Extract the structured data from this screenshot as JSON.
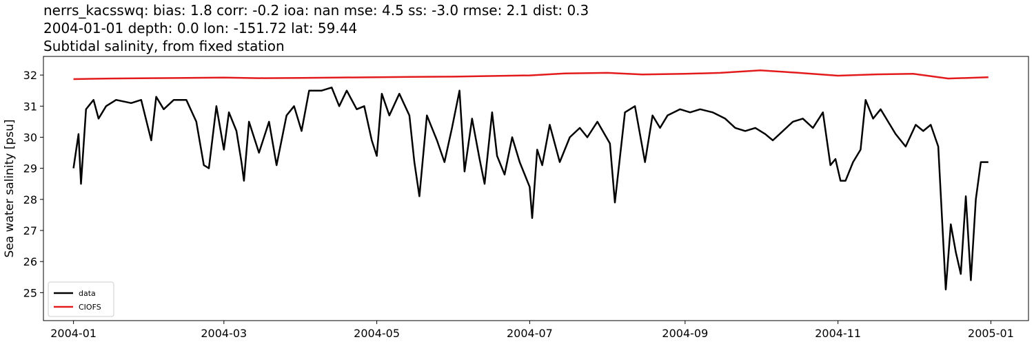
{
  "titles": {
    "line1": "nerrs_kacsswq: bias: 1.8  corr: -0.2  ioa: nan  mse: 4.5  ss: -3.0  rmse: 2.1  dist: 0.3",
    "line2": "2004-01-01 depth: 0.0 lon: -151.72 lat: 59.44",
    "line3": "Subtidal salinity, from fixed station"
  },
  "chart_data": {
    "type": "line",
    "title": "Subtidal salinity, from fixed station",
    "xlabel": "",
    "ylabel": "Sea water salinity [psu]",
    "xlim": [
      "2003-12-20",
      "2005-01-16"
    ],
    "ylim": [
      24.1,
      32.6
    ],
    "x_ticks": [
      "2004-01",
      "2004-03",
      "2004-05",
      "2004-07",
      "2004-09",
      "2004-11",
      "2005-01"
    ],
    "y_ticks": [
      25,
      26,
      27,
      28,
      29,
      30,
      31,
      32
    ],
    "grid": false,
    "legend_position": "lower-left",
    "series": [
      {
        "name": "data",
        "color": "#000000",
        "points": [
          [
            "2004-01-01",
            29.0
          ],
          [
            "2004-01-03",
            30.1
          ],
          [
            "2004-01-04",
            28.5
          ],
          [
            "2004-01-06",
            30.9
          ],
          [
            "2004-01-09",
            31.2
          ],
          [
            "2004-01-11",
            30.6
          ],
          [
            "2004-01-14",
            31.0
          ],
          [
            "2004-01-18",
            31.2
          ],
          [
            "2004-01-24",
            31.1
          ],
          [
            "2004-01-28",
            31.2
          ],
          [
            "2004-02-01",
            29.9
          ],
          [
            "2004-02-03",
            31.3
          ],
          [
            "2004-02-06",
            30.9
          ],
          [
            "2004-02-10",
            31.2
          ],
          [
            "2004-02-15",
            31.2
          ],
          [
            "2004-02-19",
            30.5
          ],
          [
            "2004-02-22",
            29.1
          ],
          [
            "2004-02-24",
            29.0
          ],
          [
            "2004-02-27",
            31.0
          ],
          [
            "2004-03-01",
            29.6
          ],
          [
            "2004-03-03",
            30.8
          ],
          [
            "2004-03-06",
            30.2
          ],
          [
            "2004-03-08",
            29.2
          ],
          [
            "2004-03-09",
            28.6
          ],
          [
            "2004-03-11",
            30.5
          ],
          [
            "2004-03-15",
            29.5
          ],
          [
            "2004-03-19",
            30.5
          ],
          [
            "2004-03-22",
            29.1
          ],
          [
            "2004-03-26",
            30.7
          ],
          [
            "2004-03-29",
            31.0
          ],
          [
            "2004-04-01",
            30.2
          ],
          [
            "2004-04-04",
            31.5
          ],
          [
            "2004-04-09",
            31.5
          ],
          [
            "2004-04-13",
            31.6
          ],
          [
            "2004-04-16",
            31.0
          ],
          [
            "2004-04-19",
            31.5
          ],
          [
            "2004-04-23",
            30.9
          ],
          [
            "2004-04-26",
            31.0
          ],
          [
            "2004-04-29",
            29.9
          ],
          [
            "2004-05-01",
            29.4
          ],
          [
            "2004-05-03",
            31.4
          ],
          [
            "2004-05-06",
            30.7
          ],
          [
            "2004-05-10",
            31.4
          ],
          [
            "2004-05-14",
            30.7
          ],
          [
            "2004-05-16",
            29.2
          ],
          [
            "2004-05-18",
            28.1
          ],
          [
            "2004-05-21",
            30.7
          ],
          [
            "2004-05-25",
            29.9
          ],
          [
            "2004-05-28",
            29.2
          ],
          [
            "2004-05-31",
            30.3
          ],
          [
            "2004-06-03",
            31.5
          ],
          [
            "2004-06-05",
            28.9
          ],
          [
            "2004-06-08",
            30.6
          ],
          [
            "2004-06-11",
            29.3
          ],
          [
            "2004-06-13",
            28.5
          ],
          [
            "2004-06-16",
            30.8
          ],
          [
            "2004-06-18",
            29.4
          ],
          [
            "2004-06-21",
            28.8
          ],
          [
            "2004-06-24",
            30.0
          ],
          [
            "2004-06-27",
            29.2
          ],
          [
            "2004-07-01",
            28.4
          ],
          [
            "2004-07-02",
            27.4
          ],
          [
            "2004-07-04",
            29.6
          ],
          [
            "2004-07-06",
            29.1
          ],
          [
            "2004-07-09",
            30.4
          ],
          [
            "2004-07-13",
            29.2
          ],
          [
            "2004-07-17",
            30.0
          ],
          [
            "2004-07-21",
            30.3
          ],
          [
            "2004-07-24",
            30.0
          ],
          [
            "2004-07-28",
            30.5
          ],
          [
            "2004-08-02",
            29.8
          ],
          [
            "2004-08-04",
            27.9
          ],
          [
            "2004-08-08",
            30.8
          ],
          [
            "2004-08-12",
            31.0
          ],
          [
            "2004-08-16",
            29.2
          ],
          [
            "2004-08-19",
            30.7
          ],
          [
            "2004-08-22",
            30.3
          ],
          [
            "2004-08-25",
            30.7
          ],
          [
            "2004-08-30",
            30.9
          ],
          [
            "2004-09-03",
            30.8
          ],
          [
            "2004-09-07",
            30.9
          ],
          [
            "2004-09-12",
            30.8
          ],
          [
            "2004-09-17",
            30.6
          ],
          [
            "2004-09-21",
            30.3
          ],
          [
            "2004-09-25",
            30.2
          ],
          [
            "2004-09-29",
            30.3
          ],
          [
            "2004-10-03",
            30.1
          ],
          [
            "2004-10-06",
            29.9
          ],
          [
            "2004-10-10",
            30.2
          ],
          [
            "2004-10-14",
            30.5
          ],
          [
            "2004-10-18",
            30.6
          ],
          [
            "2004-10-22",
            30.3
          ],
          [
            "2004-10-26",
            30.8
          ],
          [
            "2004-10-29",
            29.1
          ],
          [
            "2004-10-31",
            29.3
          ],
          [
            "2004-11-02",
            28.6
          ],
          [
            "2004-11-04",
            28.6
          ],
          [
            "2004-11-07",
            29.2
          ],
          [
            "2004-11-10",
            29.6
          ],
          [
            "2004-11-12",
            31.2
          ],
          [
            "2004-11-15",
            30.6
          ],
          [
            "2004-11-18",
            30.9
          ],
          [
            "2004-11-21",
            30.5
          ],
          [
            "2004-11-24",
            30.1
          ],
          [
            "2004-11-28",
            29.7
          ],
          [
            "2004-12-02",
            30.4
          ],
          [
            "2004-12-05",
            30.2
          ],
          [
            "2004-12-08",
            30.4
          ],
          [
            "2004-12-11",
            29.7
          ],
          [
            "2004-12-14",
            25.1
          ],
          [
            "2004-12-16",
            27.2
          ],
          [
            "2004-12-18",
            26.3
          ],
          [
            "2004-12-20",
            25.6
          ],
          [
            "2004-12-22",
            28.1
          ],
          [
            "2004-12-24",
            25.4
          ],
          [
            "2004-12-26",
            28.0
          ],
          [
            "2004-12-28",
            29.2
          ],
          [
            "2004-12-31",
            29.2
          ]
        ]
      },
      {
        "name": "CIOFS",
        "color": "#e31a1c",
        "points": [
          [
            "2004-01-01",
            31.87
          ],
          [
            "2004-01-16",
            31.89
          ],
          [
            "2004-02-01",
            31.9
          ],
          [
            "2004-02-15",
            31.91
          ],
          [
            "2004-03-01",
            31.92
          ],
          [
            "2004-03-15",
            31.9
          ],
          [
            "2004-04-01",
            31.91
          ],
          [
            "2004-04-15",
            31.92
          ],
          [
            "2004-05-01",
            31.93
          ],
          [
            "2004-05-15",
            31.94
          ],
          [
            "2004-06-01",
            31.95
          ],
          [
            "2004-06-15",
            31.97
          ],
          [
            "2004-07-01",
            31.99
          ],
          [
            "2004-07-15",
            32.05
          ],
          [
            "2004-08-01",
            32.07
          ],
          [
            "2004-08-15",
            32.02
          ],
          [
            "2004-09-01",
            32.04
          ],
          [
            "2004-09-15",
            32.07
          ],
          [
            "2004-10-01",
            32.15
          ],
          [
            "2004-10-15",
            32.08
          ],
          [
            "2004-11-01",
            31.98
          ],
          [
            "2004-11-15",
            32.02
          ],
          [
            "2004-12-01",
            32.04
          ],
          [
            "2004-12-15",
            31.89
          ],
          [
            "2004-12-31",
            31.93
          ]
        ]
      }
    ]
  }
}
